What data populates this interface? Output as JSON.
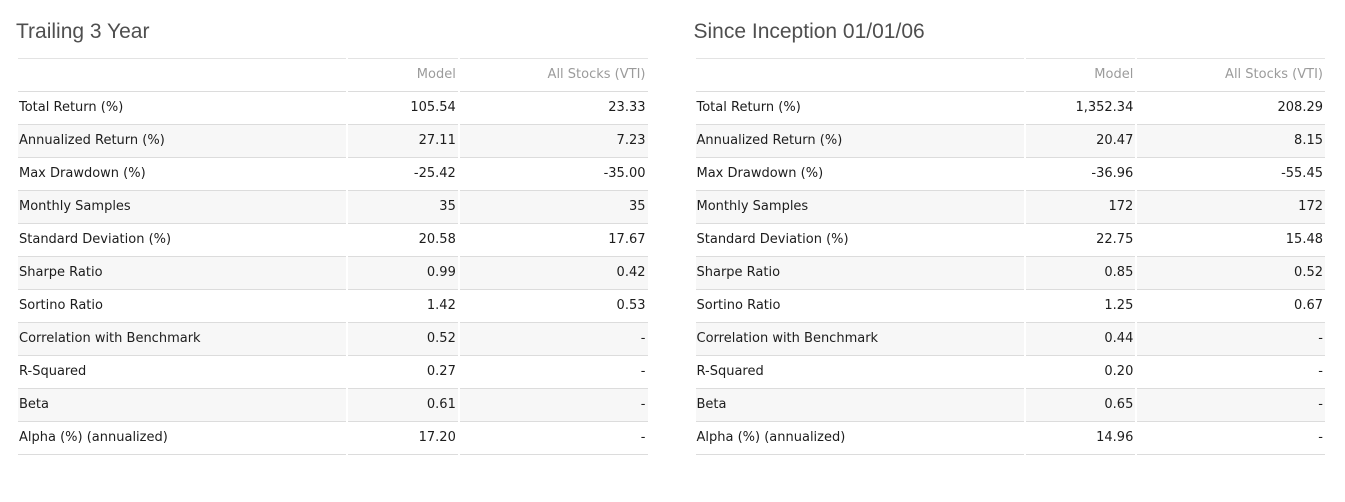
{
  "colors": {
    "negative_value": "#e20d0d",
    "column_header_text": "#9b9b9b",
    "title_text": "#4f4f4f",
    "row_stripe": "#f7f7f7",
    "row_border": "#dcdcdc"
  },
  "tables": [
    {
      "title": "Trailing 3 Year",
      "columns": {
        "metric": "",
        "model": "Model",
        "benchmark": "All Stocks (VTI)"
      },
      "rows": [
        {
          "label": "Total Return (%)",
          "model": "105.54",
          "benchmark": "23.33"
        },
        {
          "label": "Annualized Return (%)",
          "model": "27.11",
          "benchmark": "7.23"
        },
        {
          "label": "Max Drawdown (%)",
          "model": "-25.42",
          "benchmark": "-35.00",
          "negative": true
        },
        {
          "label": "Monthly Samples",
          "model": "35",
          "benchmark": "35"
        },
        {
          "label": "Standard Deviation (%)",
          "model": "20.58",
          "benchmark": "17.67"
        },
        {
          "label": "Sharpe Ratio",
          "model": "0.99",
          "benchmark": "0.42"
        },
        {
          "label": "Sortino Ratio",
          "model": "1.42",
          "benchmark": "0.53"
        },
        {
          "label": "Correlation with Benchmark",
          "model": "0.52",
          "benchmark": "-"
        },
        {
          "label": "R-Squared",
          "model": "0.27",
          "benchmark": "-"
        },
        {
          "label": "Beta",
          "model": "0.61",
          "benchmark": "-"
        },
        {
          "label": "Alpha (%) (annualized)",
          "model": "17.20",
          "benchmark": "-"
        }
      ]
    },
    {
      "title": "Since Inception 01/01/06",
      "columns": {
        "metric": "",
        "model": "Model",
        "benchmark": "All Stocks (VTI)"
      },
      "rows": [
        {
          "label": "Total Return (%)",
          "model": "1,352.34",
          "benchmark": "208.29"
        },
        {
          "label": "Annualized Return (%)",
          "model": "20.47",
          "benchmark": "8.15"
        },
        {
          "label": "Max Drawdown (%)",
          "model": "-36.96",
          "benchmark": "-55.45",
          "negative": true
        },
        {
          "label": "Monthly Samples",
          "model": "172",
          "benchmark": "172"
        },
        {
          "label": "Standard Deviation (%)",
          "model": "22.75",
          "benchmark": "15.48"
        },
        {
          "label": "Sharpe Ratio",
          "model": "0.85",
          "benchmark": "0.52"
        },
        {
          "label": "Sortino Ratio",
          "model": "1.25",
          "benchmark": "0.67"
        },
        {
          "label": "Correlation with Benchmark",
          "model": "0.44",
          "benchmark": "-"
        },
        {
          "label": "R-Squared",
          "model": "0.20",
          "benchmark": "-"
        },
        {
          "label": "Beta",
          "model": "0.65",
          "benchmark": "-"
        },
        {
          "label": "Alpha (%) (annualized)",
          "model": "14.96",
          "benchmark": "-"
        }
      ]
    }
  ]
}
